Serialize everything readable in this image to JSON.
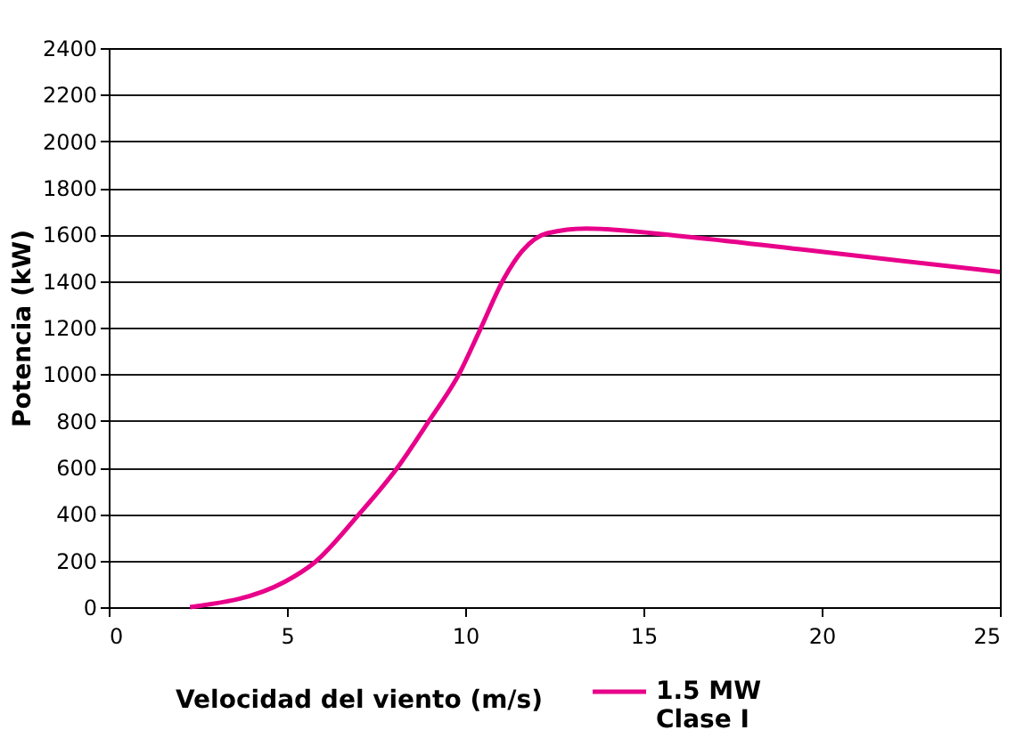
{
  "chart_data": {
    "type": "line",
    "xlabel": "Velocidad del viento (m/s)",
    "ylabel": "Potencia (kW)",
    "series": [
      {
        "name": "1.5 MW\nClase I",
        "color": "#e8008a",
        "x": [
          2.28,
          4.94,
          5.77,
          7.0,
          8.1,
          9.0,
          9.85,
          10.4,
          11.1,
          11.6,
          12.3,
          13.4,
          16.1,
          19.4,
          25
        ],
        "values": [
          0,
          109,
          191,
          395,
          599,
          803,
          1007,
          1185,
          1414,
          1529,
          1605,
          1625,
          1592,
          1536,
          1439
        ]
      }
    ],
    "xlim": [
      0,
      25
    ],
    "xticks": [
      0,
      5,
      10,
      15,
      20,
      25
    ],
    "ylim": [
      0,
      2400
    ],
    "yticks": [
      0,
      200,
      400,
      600,
      800,
      1000,
      1200,
      1400,
      1600,
      1800,
      2000,
      2200,
      2400
    ],
    "grid": "y",
    "legend": "bottom right",
    "marker": "none",
    "line_style": "solid"
  }
}
